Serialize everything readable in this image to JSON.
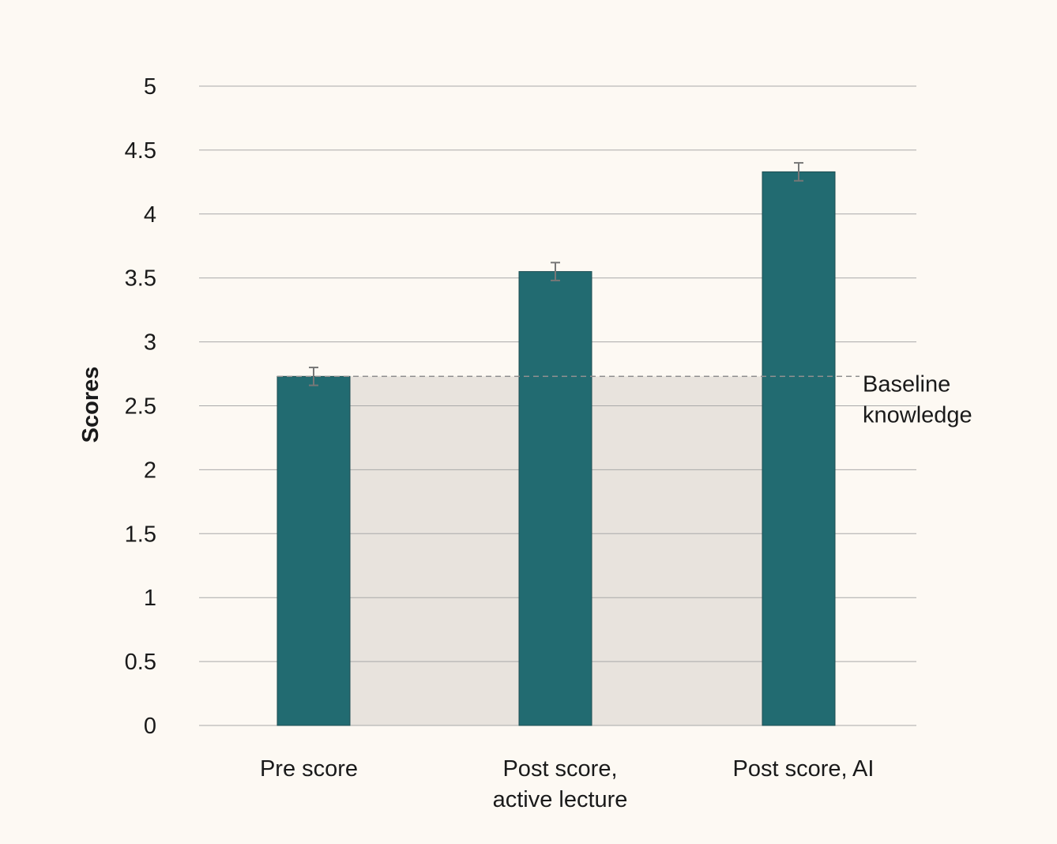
{
  "chart_data": {
    "type": "bar",
    "categories": [
      [
        "Pre score"
      ],
      [
        "Post score,",
        "active lecture"
      ],
      [
        "Post score, AI"
      ]
    ],
    "values": [
      2.73,
      3.55,
      4.33
    ],
    "errors": [
      0.07,
      0.07,
      0.07
    ],
    "ylabel": "Scores",
    "ylim": [
      0,
      5
    ],
    "yticks": [
      0,
      0.5,
      1,
      1.5,
      2,
      2.5,
      3,
      3.5,
      4,
      4.5,
      5
    ],
    "ytick_labels": [
      "0",
      "0.5",
      "1",
      "1.5",
      "2",
      "2.5",
      "3",
      "3.5",
      "4",
      "4.5",
      "5"
    ],
    "grid": true,
    "baseline": {
      "value": 2.73,
      "label_lines": [
        "Baseline",
        "knowledge"
      ]
    },
    "colors": {
      "bar": "#226b71",
      "bar_edge": "#1d4e52",
      "baseline_fill": "#e8e3dd",
      "grid": "#a9a9a9",
      "error_bar": "#777777",
      "background": "#fdf9f3"
    }
  }
}
